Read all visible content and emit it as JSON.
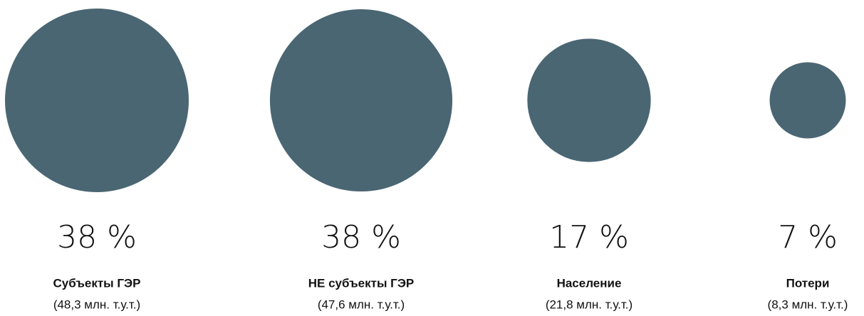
{
  "chart_data": {
    "type": "bubble",
    "categories": [
      "Субъекты ГЭР",
      "НЕ субъекты ГЭР",
      "Население",
      "Потери"
    ],
    "values": [
      38,
      38,
      17,
      7
    ],
    "value_labels": [
      "38 %",
      "38 %",
      "17 %",
      "7 %"
    ],
    "sizes": [
      48.3,
      47.6,
      21.8,
      8.3
    ],
    "size_labels": [
      "(48,3 млн. т.у.т.)",
      "(47,6 млн. т.у.т.)",
      "(21,8 млн. т.у.т.)",
      "(8,3 млн. т.у.т.)"
    ],
    "color": "#4a6673"
  }
}
